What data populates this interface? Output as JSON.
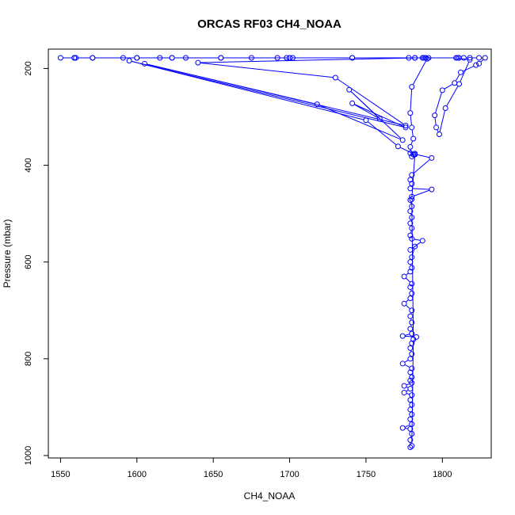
{
  "chart_data": {
    "type": "line",
    "title": "ORCAS RF03 CH4_NOAA",
    "xlabel": "CH4_NOAA",
    "ylabel": "Pressure (mbar)",
    "xlim": [
      1542,
      1832
    ],
    "ylim": [
      1005,
      160
    ],
    "y_reversed": true,
    "grid": false,
    "x_ticks": [
      1550,
      1600,
      1650,
      1700,
      1750,
      1800
    ],
    "y_ticks": [
      200,
      400,
      600,
      800,
      1000
    ],
    "series": [
      {
        "color": "#0000ff",
        "marker": "open-circle",
        "points": [
          [
            1779,
            983
          ],
          [
            1779,
            968
          ],
          [
            1780,
            955
          ],
          [
            1779,
            945
          ],
          [
            1774,
            943
          ],
          [
            1780,
            935
          ],
          [
            1779,
            925
          ],
          [
            1780,
            915
          ],
          [
            1779,
            905
          ],
          [
            1780,
            895
          ],
          [
            1779,
            885
          ],
          [
            1780,
            875
          ],
          [
            1775,
            870
          ],
          [
            1779,
            862
          ],
          [
            1775,
            856
          ],
          [
            1780,
            850
          ],
          [
            1779,
            845
          ],
          [
            1780,
            838
          ],
          [
            1779,
            828
          ],
          [
            1780,
            820
          ],
          [
            1774,
            810
          ],
          [
            1779,
            800
          ],
          [
            1780,
            790
          ],
          [
            1779,
            778
          ],
          [
            1780,
            768
          ],
          [
            1783,
            755
          ],
          [
            1774,
            753
          ],
          [
            1780,
            748
          ],
          [
            1779,
            738
          ],
          [
            1780,
            725
          ],
          [
            1779,
            712
          ],
          [
            1780,
            700
          ],
          [
            1775,
            686
          ],
          [
            1779,
            675
          ],
          [
            1780,
            665
          ],
          [
            1779,
            652
          ],
          [
            1780,
            645
          ],
          [
            1775,
            630
          ],
          [
            1779,
            620
          ],
          [
            1780,
            612
          ],
          [
            1779,
            600
          ],
          [
            1780,
            590
          ],
          [
            1782,
            568
          ],
          [
            1779,
            575
          ],
          [
            1787,
            556
          ],
          [
            1780,
            552
          ],
          [
            1779,
            545
          ],
          [
            1780,
            530
          ],
          [
            1779,
            520
          ],
          [
            1780,
            508
          ],
          [
            1779,
            495
          ],
          [
            1780,
            485
          ],
          [
            1779,
            472
          ],
          [
            1780,
            465
          ],
          [
            1793,
            450
          ],
          [
            1779,
            448
          ],
          [
            1780,
            438
          ],
          [
            1779,
            430
          ],
          [
            1780,
            420
          ],
          [
            1793,
            385
          ],
          [
            1779,
            375
          ],
          [
            1781,
            378
          ],
          [
            1782,
            376
          ],
          [
            1780,
            382
          ],
          [
            1779,
            362
          ],
          [
            1781,
            345
          ],
          [
            1780,
            322
          ],
          [
            1779,
            292
          ],
          [
            1780,
            238
          ],
          [
            1790,
            180
          ],
          [
            1789,
            178
          ],
          [
            1787,
            178
          ],
          [
            1778,
            178
          ],
          [
            1741,
            178
          ],
          [
            1702,
            178
          ],
          [
            1700,
            178
          ],
          [
            1698,
            178
          ],
          [
            1692,
            178
          ],
          [
            1675,
            178
          ],
          [
            1655,
            178
          ],
          [
            1632,
            178
          ],
          [
            1623,
            178
          ],
          [
            1615,
            178
          ],
          [
            1600,
            178
          ],
          [
            1591,
            178
          ],
          [
            1571,
            178
          ],
          [
            1560,
            178
          ],
          [
            1559,
            178
          ],
          [
            1550,
            178
          ],
          [
            1559,
            178
          ],
          [
            1571,
            178
          ],
          [
            1600,
            178
          ],
          [
            1623,
            178
          ],
          [
            1655,
            178
          ],
          [
            1700,
            178
          ],
          [
            1741,
            178
          ],
          [
            1782,
            178
          ],
          [
            1788,
            178
          ],
          [
            1791,
            178
          ],
          [
            1810,
            178
          ],
          [
            1811,
            178
          ],
          [
            1814,
            178
          ],
          [
            1818,
            178
          ],
          [
            1824,
            178
          ],
          [
            1828,
            178
          ],
          [
            1824,
            190
          ],
          [
            1822,
            193
          ],
          [
            1812,
            208
          ],
          [
            1808,
            230
          ],
          [
            1800,
            245
          ],
          [
            1795,
            297
          ],
          [
            1796,
            322
          ],
          [
            1798,
            336
          ],
          [
            1802,
            282
          ],
          [
            1811,
            232
          ],
          [
            1818,
            182
          ],
          [
            1809,
            178
          ],
          [
            1782,
            178
          ],
          [
            1640,
            188
          ],
          [
            1730,
            219
          ],
          [
            1776,
            318
          ],
          [
            1605,
            190
          ],
          [
            1718,
            274
          ],
          [
            1774,
            348
          ],
          [
            1739,
            244
          ],
          [
            1759,
            304
          ],
          [
            1741,
            272
          ],
          [
            1776,
            322
          ],
          [
            1595,
            184
          ],
          [
            1750,
            307
          ],
          [
            1771,
            361
          ],
          [
            1782,
            378
          ],
          [
            1780,
            470
          ],
          [
            1781,
            760
          ],
          [
            1780,
            980
          ]
        ]
      }
    ]
  }
}
